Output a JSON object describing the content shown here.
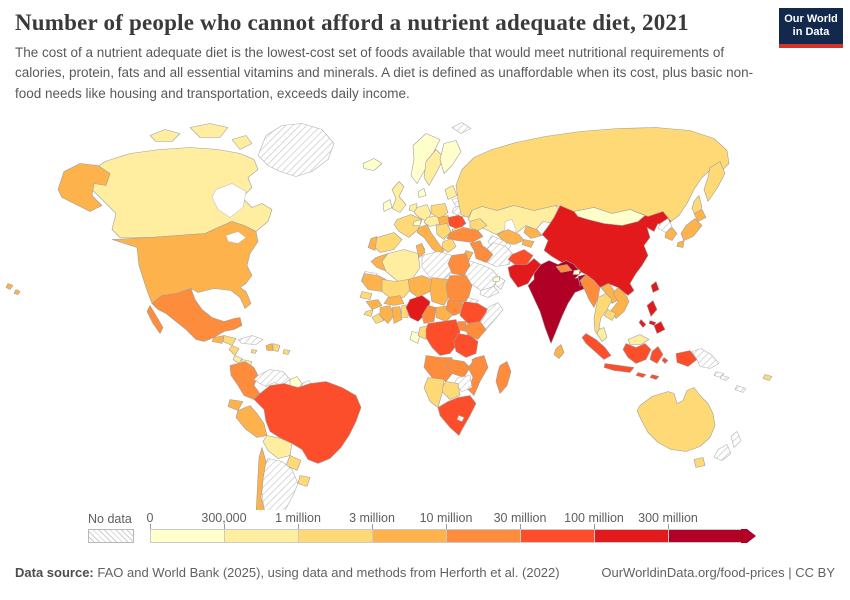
{
  "header": {
    "title": "Number of people who cannot afford a nutrient adequate diet, 2021",
    "subtitle": "The cost of a nutrient adequate diet is the lowest-cost set of foods available that would meet nutritional requirements of calories, protein, fats and all essential vitamins and minerals. A diet is defined as unaffordable when its cost, plus basic non-food needs like housing and transportation, exceeds daily income."
  },
  "logo": {
    "line1": "Our World",
    "line2": "in Data",
    "bg_color": "#12294d",
    "accent_color": "#d0342c"
  },
  "legend": {
    "no_data_label": "No data",
    "tick_labels": [
      "0",
      "300,000",
      "1 million",
      "3 million",
      "10 million",
      "30 million",
      "100 million",
      "300 million"
    ],
    "colors": [
      "#ffffcc",
      "#ffeda0",
      "#fed976",
      "#feb24c",
      "#fd8d3c",
      "#fc4e2a",
      "#e31a1c",
      "#b10026"
    ]
  },
  "footer": {
    "source_label": "Data source:",
    "source_text": " FAO and World Bank (2025), using data and methods from Herforth et al. (2022)",
    "link_text": "OurWorldinData.org/food-prices | CC BY"
  },
  "chart_data": {
    "type": "heatmap",
    "title": "Number of people who cannot afford a nutrient adequate diet, 2021",
    "legend_position": "bottom",
    "scale_type": "log-bucketed choropleth",
    "buckets": [
      "0-300,000",
      "300,000-1 million",
      "1-3 million",
      "3-10 million",
      "10-30 million",
      "30-100 million",
      "100-300 million",
      "300 million+"
    ],
    "bucket_colors": [
      "#ffffcc",
      "#ffeda0",
      "#fed976",
      "#feb24c",
      "#fd8d3c",
      "#fc4e2a",
      "#e31a1c",
      "#b10026"
    ]
  },
  "map": {
    "countries": {
      "greenland": "no_data",
      "canada": 1,
      "united_states": 3,
      "mexico": 4,
      "guatemala": 3,
      "honduras": 2,
      "nicaragua": 2,
      "costa_rica": 1,
      "panama": 1,
      "cuba": "no_data",
      "jamaica": 2,
      "haiti": 3,
      "dominican_republic": 2,
      "puerto_rico": 2,
      "colombia": 4,
      "venezuela": "no_data",
      "guyana": 0,
      "suriname": "no_data",
      "french_guiana": "no_data",
      "ecuador": 3,
      "peru": 3,
      "brazil": 5,
      "bolivia": 1,
      "paraguay": 2,
      "uruguay": 2,
      "argentina": "no_data",
      "chile": 3,
      "falkland_islands": "no_data",
      "iceland": 0,
      "svalbard": "no_data",
      "norway": 0,
      "sweden": 1,
      "finland": 0,
      "denmark": 0,
      "united_kingdom": 1,
      "ireland": 0,
      "france": 2,
      "spain": 2,
      "portugal": 3,
      "germany": 1,
      "benelux": 1,
      "switzerland": 0,
      "czechia_austria": 1,
      "poland": 2,
      "italy": 3,
      "sicily": 3,
      "sardinia": 2,
      "hungary": 3,
      "balkans": 2,
      "greece": 2,
      "romania": 5,
      "bulgaria": 2,
      "baltics": 1,
      "belarus": "no_data",
      "ukraine": "no_data",
      "russia": 2,
      "kamchatka": 2,
      "sakhalin": 2,
      "kazakhstan": 1,
      "caucasus": 2,
      "turkey": 4,
      "syria": 4,
      "jordan_israel": 3,
      "iraq": 4,
      "iran": "no_data",
      "saudi_arabia": "no_data",
      "yemen": "no_data",
      "oman": "no_data",
      "uae": 0,
      "turkmenistan": "no_data",
      "uzbekistan": 3,
      "kyrgyzstan": 3,
      "tajikistan": 3,
      "afghanistan": 5,
      "pakistan": 6,
      "india": 7,
      "nepal": 4,
      "bhutan": 0,
      "bangladesh": 7,
      "sri_lanka": 3,
      "china": 6,
      "mongolia": 0,
      "taiwan": 6,
      "hainan": 6,
      "north_korea": "no_data",
      "south_korea": 3,
      "japan_hokkaido": 3,
      "japan_honshu": 3,
      "japan_kyushu": 3,
      "myanmar": 4,
      "thailand": 2,
      "laos": 3,
      "vietnam": 3,
      "cambodia": 2,
      "malaysia": 1,
      "malaysia_borneo": 1,
      "indonesia_sumatra": 5,
      "indonesia_java": 5,
      "indonesia_kalimantan": 5,
      "indonesia_sulawesi": 5,
      "indonesia_lesser_sunda_1": 5,
      "indonesia_lesser_sunda_2": 5,
      "indonesia_maluku": 5,
      "indonesia_papua": 5,
      "papua_new_guinea": "no_data",
      "new_britain": "no_data",
      "philippines_luzon": 6,
      "philippines_visayas": 6,
      "philippines_mindanao": 6,
      "philippines_palawan": 6,
      "australia": 2,
      "tasmania": 2,
      "new_zealand_north": "no_data",
      "new_zealand_south": "no_data",
      "fiji": 2,
      "new_caledonia": "no_data",
      "solomon_islands": "no_data",
      "hawaii_1": 3,
      "hawaii_2": 3,
      "alaska": 3,
      "morocco": 3,
      "western_sahara": "no_data",
      "algeria": 1,
      "tunisia": 3,
      "libya": "no_data",
      "egypt": 4,
      "mauritania": 3,
      "mali": 2,
      "niger": 3,
      "chad": 3,
      "sudan": 4,
      "eritrea": "no_data",
      "senegal": 2,
      "guinea": 3,
      "sierra_leone": 2,
      "liberia": 2,
      "ivory_coast": 3,
      "ghana": 3,
      "togo_benin": 2,
      "burkina_faso": 3,
      "nigeria": 6,
      "cameroon": 4,
      "central_african_republic": 3,
      "south_sudan": 4,
      "ethiopia": 5,
      "somalia": "no_data",
      "kenya": 4,
      "uganda": 4,
      "gabon": 0,
      "congo": 2,
      "dr_congo": 5,
      "tanzania": 5,
      "angola": 4,
      "zambia": 4,
      "malawi": 4,
      "mozambique": 4,
      "zimbabwe": "no_data",
      "botswana": 2,
      "namibia": 2,
      "south_africa": 5,
      "lesotho": "no_data",
      "madagascar": 4
    }
  }
}
